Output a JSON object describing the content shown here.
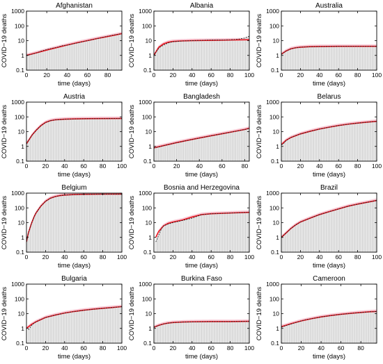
{
  "figure": {
    "y_label": "COVID−19 deaths",
    "x_label": "time (days)",
    "colors": {
      "bars": "#d3d3d3",
      "fit": "#e8141e",
      "data": "#222222",
      "band": "#f7c8d4"
    }
  },
  "chart_data": [
    {
      "type": "line",
      "title": "Afghanistan",
      "xlabel": "time (days)",
      "ylabel": "COVID−19 deaths",
      "yscale": "log",
      "xlim": [
        0,
        94
      ],
      "ylim": [
        0.1,
        1000
      ],
      "xticks": [
        0,
        20,
        40,
        60,
        80
      ],
      "yticks": [
        "0.1",
        "1",
        "10",
        "100",
        "1000"
      ],
      "series": [
        {
          "kind": "observed",
          "x": [
            0,
            5,
            10,
            15,
            20,
            25,
            30,
            35,
            40,
            50,
            60,
            70,
            80,
            90,
            94
          ],
          "y": [
            1,
            1.2,
            1.5,
            2,
            2.5,
            3,
            3.5,
            4.5,
            5,
            7,
            10,
            14,
            20,
            27,
            30
          ]
        },
        {
          "kind": "fit",
          "x": [
            0,
            10,
            20,
            30,
            40,
            50,
            60,
            70,
            80,
            90,
            94
          ],
          "y": [
            1,
            1.5,
            2.3,
            3.4,
            5,
            7.2,
            10,
            14,
            19,
            26,
            30
          ]
        }
      ]
    },
    {
      "type": "line",
      "title": "Albania",
      "xlabel": "time (days)",
      "ylabel": "COVID−19 deaths",
      "yscale": "log",
      "xlim": [
        0,
        100
      ],
      "ylim": [
        0.1,
        1000
      ],
      "xticks": [
        0,
        20,
        40,
        60,
        80,
        100
      ],
      "yticks": [
        "0.1",
        "1",
        "10",
        "100",
        "1000"
      ],
      "series": [
        {
          "kind": "observed",
          "x": [
            0,
            3,
            6,
            10,
            15,
            20,
            30,
            40,
            50,
            60,
            70,
            80,
            85,
            90,
            95,
            100
          ],
          "y": [
            1,
            2,
            3.5,
            5,
            7,
            8.5,
            9.5,
            10,
            10.5,
            11,
            11,
            11.5,
            12,
            13,
            15,
            20
          ]
        },
        {
          "kind": "fit",
          "x": [
            0,
            5,
            10,
            15,
            20,
            30,
            40,
            60,
            80,
            100
          ],
          "y": [
            1,
            3.5,
            6,
            7.8,
            8.8,
            9.6,
            10,
            10.5,
            11,
            11.5
          ]
        }
      ]
    },
    {
      "type": "line",
      "title": "Australia",
      "xlabel": "time (days)",
      "ylabel": "COVID−19 deaths",
      "yscale": "log",
      "xlim": [
        0,
        100
      ],
      "ylim": [
        0.1,
        1000
      ],
      "xticks": [
        0,
        20,
        40,
        60,
        80,
        100
      ],
      "yticks": [
        "0.1",
        "1",
        "10",
        "100",
        "1000"
      ],
      "series": [
        {
          "kind": "observed",
          "x": [
            0,
            5,
            10,
            15,
            20,
            30,
            40,
            60,
            80,
            100
          ],
          "y": [
            1.2,
            2,
            2.8,
            3.3,
            3.6,
            3.9,
            4,
            4.1,
            4.1,
            4.1
          ]
        },
        {
          "kind": "fit",
          "x": [
            0,
            5,
            10,
            15,
            20,
            30,
            40,
            60,
            80,
            100
          ],
          "y": [
            1.2,
            2,
            2.8,
            3.3,
            3.6,
            3.9,
            4,
            4.1,
            4.1,
            4.1
          ]
        }
      ]
    },
    {
      "type": "line",
      "title": "Austria",
      "xlabel": "time (days)",
      "ylabel": "COVID−19 deaths",
      "yscale": "log",
      "xlim": [
        0,
        100
      ],
      "ylim": [
        0.1,
        1000
      ],
      "xticks": [
        0,
        20,
        40,
        60,
        80,
        100
      ],
      "yticks": [
        "0.1",
        "1",
        "10",
        "100",
        "1000"
      ],
      "series": [
        {
          "kind": "observed",
          "x": [
            0,
            3,
            6,
            10,
            15,
            20,
            25,
            30,
            40,
            50,
            60,
            80,
            100
          ],
          "y": [
            1.5,
            3,
            6,
            12,
            25,
            42,
            55,
            63,
            70,
            73,
            75,
            77,
            78
          ]
        },
        {
          "kind": "fit",
          "x": [
            0,
            3,
            6,
            10,
            15,
            20,
            25,
            30,
            40,
            50,
            60,
            80,
            100
          ],
          "y": [
            1.5,
            3,
            6,
            12,
            25,
            42,
            55,
            63,
            70,
            73,
            75,
            77,
            78
          ]
        }
      ]
    },
    {
      "type": "line",
      "title": "Bangladesh",
      "xlabel": "time (days)",
      "ylabel": "COVID−19 deaths",
      "yscale": "log",
      "xlim": [
        0,
        84
      ],
      "ylim": [
        0.1,
        1000
      ],
      "xticks": [
        0,
        20,
        40,
        60,
        80
      ],
      "yticks": [
        "0.1",
        "1",
        "10",
        "100",
        "1000"
      ],
      "series": [
        {
          "kind": "observed",
          "x": [
            0,
            5,
            10,
            20,
            30,
            40,
            50,
            60,
            70,
            80,
            84
          ],
          "y": [
            0.8,
            0.95,
            1.2,
            1.8,
            2.6,
            3.7,
            5.2,
            7.2,
            10,
            14,
            17
          ]
        },
        {
          "kind": "fit",
          "x": [
            0,
            10,
            20,
            30,
            40,
            50,
            60,
            70,
            80,
            84
          ],
          "y": [
            0.8,
            1.2,
            1.8,
            2.6,
            3.7,
            5.2,
            7.2,
            10,
            14,
            17
          ]
        }
      ]
    },
    {
      "type": "line",
      "title": "Belarus",
      "xlabel": "time (days)",
      "ylabel": "COVID−19 deaths",
      "yscale": "log",
      "xlim": [
        0,
        100
      ],
      "ylim": [
        0.1,
        1000
      ],
      "xticks": [
        0,
        20,
        40,
        60,
        80,
        100
      ],
      "yticks": [
        "0.1",
        "1",
        "10",
        "100",
        "1000"
      ],
      "series": [
        {
          "kind": "observed",
          "x": [
            0,
            2,
            5,
            10,
            15,
            20,
            30,
            40,
            50,
            60,
            70,
            80,
            90,
            100
          ],
          "y": [
            1.3,
            1.5,
            2.5,
            4,
            5.5,
            7,
            10.5,
            15,
            20,
            26,
            32,
            38,
            44,
            50
          ]
        },
        {
          "kind": "fit",
          "x": [
            0,
            5,
            10,
            20,
            30,
            40,
            50,
            60,
            70,
            80,
            90,
            100
          ],
          "y": [
            1.3,
            2.6,
            4,
            7,
            10.5,
            15,
            20,
            26,
            32,
            38,
            44,
            50
          ]
        }
      ]
    },
    {
      "type": "line",
      "title": "Belgium",
      "xlabel": "time (days)",
      "ylabel": "COVID−19 deaths",
      "yscale": "log",
      "xlim": [
        0,
        100
      ],
      "ylim": [
        0.1,
        1000
      ],
      "xticks": [
        0,
        20,
        40,
        60,
        80,
        100
      ],
      "yticks": [
        "0.1",
        "1",
        "10",
        "100",
        "1000"
      ],
      "series": [
        {
          "kind": "observed",
          "x": [
            0,
            2,
            5,
            8,
            10,
            15,
            20,
            25,
            30,
            35,
            40,
            50,
            60,
            80,
            100
          ],
          "y": [
            0.5,
            2,
            8,
            25,
            45,
            130,
            280,
            450,
            580,
            680,
            740,
            800,
            830,
            850,
            860
          ]
        },
        {
          "kind": "fit",
          "x": [
            0,
            2,
            5,
            8,
            10,
            15,
            20,
            25,
            30,
            35,
            40,
            50,
            60,
            80,
            100
          ],
          "y": [
            0.5,
            2,
            8,
            25,
            45,
            130,
            280,
            450,
            580,
            680,
            740,
            800,
            830,
            850,
            860
          ]
        }
      ]
    },
    {
      "type": "line",
      "title": "Bosnia and Herzegovina",
      "xlabel": "time (days)",
      "ylabel": "COVID−19 deaths",
      "yscale": "log",
      "xlim": [
        0,
        100
      ],
      "ylim": [
        0.1,
        1000
      ],
      "xticks": [
        0,
        20,
        40,
        60,
        80,
        100
      ],
      "yticks": [
        "0.1",
        "1",
        "10",
        "100",
        "1000"
      ],
      "series": [
        {
          "kind": "observed",
          "x": [
            2,
            4,
            6,
            8,
            10,
            15,
            20,
            30,
            40,
            50,
            60,
            80,
            100
          ],
          "y": [
            0.5,
            1,
            2,
            4,
            6,
            8,
            10,
            14,
            20,
            35,
            40,
            45,
            50
          ]
        },
        {
          "kind": "fit",
          "x": [
            2,
            5,
            10,
            15,
            20,
            30,
            40,
            50,
            60,
            80,
            100
          ],
          "y": [
            1,
            2.5,
            6,
            9,
            11,
            15,
            24,
            35,
            40,
            45,
            50
          ]
        }
      ]
    },
    {
      "type": "line",
      "title": "Brazil",
      "xlabel": "time (days)",
      "ylabel": "COVID−19 deaths",
      "yscale": "log",
      "xlim": [
        0,
        100
      ],
      "ylim": [
        0.1,
        1000
      ],
      "xticks": [
        0,
        20,
        40,
        60,
        80,
        100
      ],
      "yticks": [
        "0.1",
        "1",
        "10",
        "100",
        "1000"
      ],
      "series": [
        {
          "kind": "observed",
          "x": [
            0,
            5,
            10,
            15,
            20,
            30,
            40,
            50,
            60,
            70,
            80,
            90,
            100
          ],
          "y": [
            1,
            2,
            4,
            7,
            11,
            20,
            35,
            55,
            85,
            130,
            180,
            240,
            320
          ]
        },
        {
          "kind": "fit",
          "x": [
            0,
            5,
            10,
            15,
            20,
            30,
            40,
            50,
            60,
            70,
            80,
            90,
            100
          ],
          "y": [
            1,
            2,
            4,
            7,
            11,
            20,
            35,
            55,
            85,
            130,
            180,
            240,
            320
          ]
        }
      ]
    },
    {
      "type": "line",
      "title": "Bulgaria",
      "xlabel": "time (days)",
      "ylabel": "COVID−19 deaths",
      "yscale": "log",
      "xlim": [
        0,
        100
      ],
      "ylim": [
        0.1,
        1000
      ],
      "xticks": [
        0,
        20,
        40,
        60,
        80,
        100
      ],
      "yticks": [
        "0.1",
        "1",
        "10",
        "100",
        "1000"
      ],
      "series": [
        {
          "kind": "observed",
          "x": [
            2,
            4,
            6,
            10,
            15,
            20,
            30,
            40,
            50,
            60,
            70,
            80,
            90,
            100
          ],
          "y": [
            0.8,
            1.2,
            1.8,
            2.8,
            4,
            5.5,
            8,
            11,
            14,
            17,
            20,
            23,
            26,
            30
          ]
        },
        {
          "kind": "fit",
          "x": [
            0,
            5,
            10,
            20,
            30,
            40,
            50,
            60,
            70,
            80,
            90,
            100
          ],
          "y": [
            1,
            1.8,
            2.8,
            5.5,
            8,
            11,
            14,
            17,
            20,
            23,
            26,
            30
          ]
        }
      ]
    },
    {
      "type": "line",
      "title": "Burkina Faso",
      "xlabel": "time (days)",
      "ylabel": "COVID−19 deaths",
      "yscale": "log",
      "xlim": [
        0,
        100
      ],
      "ylim": [
        0.1,
        1000
      ],
      "xticks": [
        0,
        20,
        40,
        60,
        80,
        100
      ],
      "yticks": [
        "0.1",
        "1",
        "10",
        "100",
        "1000"
      ],
      "series": [
        {
          "kind": "observed",
          "x": [
            0,
            5,
            10,
            15,
            20,
            30,
            40,
            60,
            80,
            100
          ],
          "y": [
            1.2,
            1.6,
            2,
            2.3,
            2.5,
            2.7,
            2.8,
            2.9,
            2.9,
            3
          ]
        },
        {
          "kind": "fit",
          "x": [
            0,
            5,
            10,
            15,
            20,
            30,
            40,
            60,
            80,
            100
          ],
          "y": [
            1.2,
            1.6,
            2,
            2.3,
            2.5,
            2.7,
            2.8,
            2.9,
            2.9,
            3
          ]
        }
      ]
    },
    {
      "type": "line",
      "title": "Cameroon",
      "xlabel": "time (days)",
      "ylabel": "COVID−19 deaths",
      "yscale": "log",
      "xlim": [
        0,
        96
      ],
      "ylim": [
        0.1,
        1000
      ],
      "xticks": [
        0,
        20,
        40,
        60,
        80
      ],
      "yticks": [
        "0.1",
        "1",
        "10",
        "100",
        "1000"
      ],
      "series": [
        {
          "kind": "observed",
          "x": [
            0,
            5,
            10,
            15,
            20,
            25,
            30,
            40,
            50,
            60,
            70,
            80,
            90,
            96
          ],
          "y": [
            1.2,
            1.6,
            2,
            2.6,
            3.2,
            4,
            4.5,
            6,
            7.5,
            9,
            10.5,
            12,
            13.5,
            14
          ]
        },
        {
          "kind": "fit",
          "x": [
            0,
            10,
            20,
            30,
            40,
            50,
            60,
            70,
            80,
            90,
            96
          ],
          "y": [
            1.3,
            2.1,
            3.2,
            4.5,
            6,
            7.5,
            9,
            10.5,
            12,
            13.5,
            14
          ]
        }
      ]
    }
  ]
}
